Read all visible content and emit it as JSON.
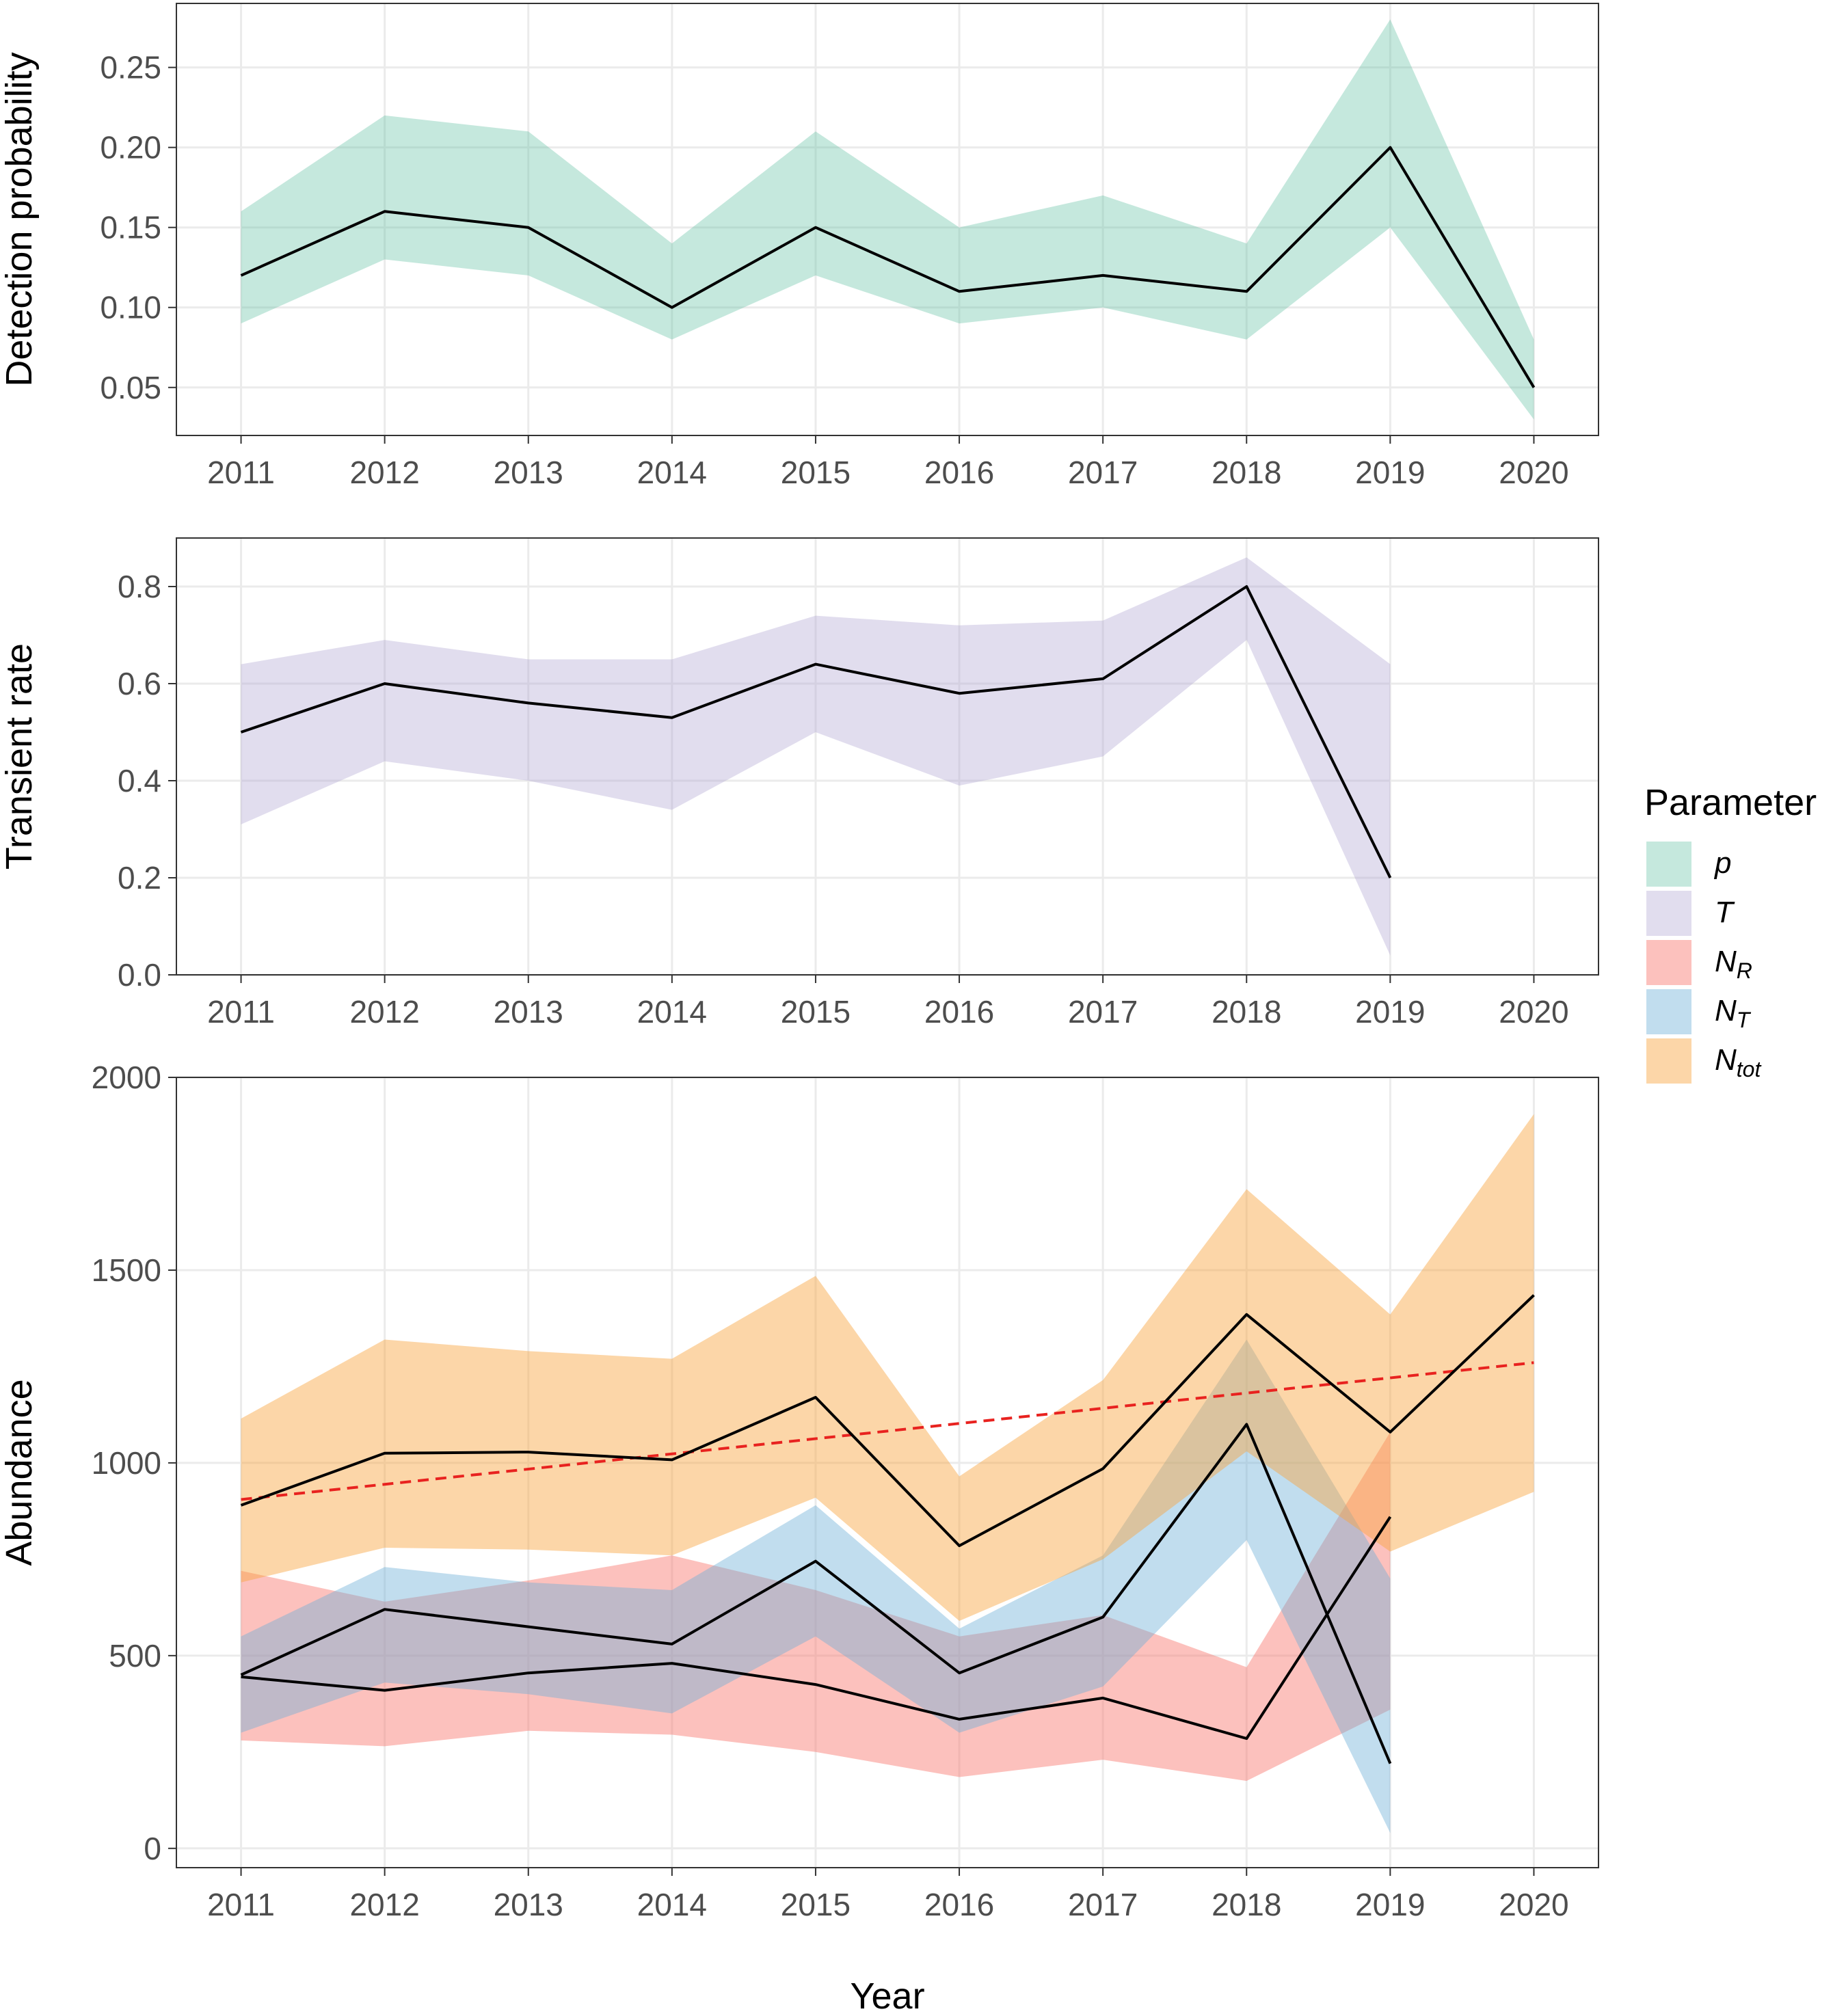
{
  "x_axis_title": "Year",
  "legend": {
    "title": "Parameter",
    "items": [
      {
        "key": "p",
        "main": "p",
        "sub": "",
        "color": "#66C2A5"
      },
      {
        "key": "T",
        "main": "T",
        "sub": "",
        "color": "#A69CCC"
      },
      {
        "key": "NR",
        "main": "N",
        "sub": "R",
        "color": "#F8766D"
      },
      {
        "key": "NT",
        "main": "N",
        "sub": "T",
        "color": "#6BAED6"
      },
      {
        "key": "Ntot",
        "main": "N",
        "sub": "tot",
        "color": "#F9A43E"
      }
    ]
  },
  "chart_data": [
    {
      "type": "area",
      "panel": "top",
      "title": "",
      "xlabel": "Year",
      "ylabel": "Detection probability",
      "xlim": [
        2010.55,
        2020.45
      ],
      "ylim": [
        0.02,
        0.29
      ],
      "xticks": [
        2011,
        2012,
        2013,
        2014,
        2015,
        2016,
        2017,
        2018,
        2019,
        2020
      ],
      "yticks": [
        0.05,
        0.1,
        0.15,
        0.2,
        0.25
      ],
      "ytick_labels": [
        "0.05",
        "0.10",
        "0.15",
        "0.20",
        "0.25"
      ],
      "grid": true,
      "series": [
        {
          "name": "p",
          "color": "#66C2A5",
          "x": [
            2011,
            2012,
            2013,
            2014,
            2015,
            2016,
            2017,
            2018,
            2019,
            2020
          ],
          "mean": [
            0.12,
            0.16,
            0.15,
            0.1,
            0.15,
            0.11,
            0.12,
            0.11,
            0.2,
            0.05
          ],
          "lower": [
            0.09,
            0.13,
            0.12,
            0.08,
            0.12,
            0.09,
            0.1,
            0.08,
            0.15,
            0.03
          ],
          "upper": [
            0.16,
            0.22,
            0.21,
            0.14,
            0.21,
            0.15,
            0.17,
            0.14,
            0.28,
            0.08
          ]
        }
      ]
    },
    {
      "type": "area",
      "panel": "middle",
      "title": "",
      "xlabel": "Year",
      "ylabel": "Transient rate",
      "xlim": [
        2010.55,
        2020.45
      ],
      "ylim": [
        0.0,
        0.9
      ],
      "xticks": [
        2011,
        2012,
        2013,
        2014,
        2015,
        2016,
        2017,
        2018,
        2019,
        2020
      ],
      "yticks": [
        0.0,
        0.2,
        0.4,
        0.6,
        0.8
      ],
      "ytick_labels": [
        "0.0",
        "0.2",
        "0.4",
        "0.6",
        "0.8"
      ],
      "grid": true,
      "series": [
        {
          "name": "T",
          "color": "#A69CCC",
          "x": [
            2011,
            2012,
            2013,
            2014,
            2015,
            2016,
            2017,
            2018,
            2019
          ],
          "mean": [
            0.5,
            0.6,
            0.56,
            0.53,
            0.64,
            0.58,
            0.61,
            0.8,
            0.2
          ],
          "lower": [
            0.31,
            0.44,
            0.4,
            0.34,
            0.5,
            0.39,
            0.45,
            0.69,
            0.04
          ],
          "upper": [
            0.64,
            0.69,
            0.65,
            0.65,
            0.74,
            0.72,
            0.73,
            0.86,
            0.64
          ]
        }
      ]
    },
    {
      "type": "area",
      "panel": "bottom",
      "title": "",
      "xlabel": "Year",
      "ylabel": "Abundance",
      "xlim": [
        2010.55,
        2020.45
      ],
      "ylim": [
        -50,
        2000
      ],
      "xticks": [
        2011,
        2012,
        2013,
        2014,
        2015,
        2016,
        2017,
        2018,
        2019,
        2020
      ],
      "yticks": [
        0,
        500,
        1000,
        1500,
        2000
      ],
      "ytick_labels": [
        "0",
        "500",
        "1000",
        "1500",
        "2000"
      ],
      "grid": true,
      "series": [
        {
          "name": "NR",
          "color": "#F8766D",
          "x": [
            2011,
            2012,
            2013,
            2014,
            2015,
            2016,
            2017,
            2018,
            2019
          ],
          "mean": [
            445,
            410,
            455,
            480,
            425,
            335,
            390,
            285,
            860
          ],
          "lower": [
            280,
            265,
            305,
            295,
            250,
            185,
            230,
            175,
            360
          ],
          "upper": [
            720,
            640,
            695,
            760,
            670,
            550,
            605,
            470,
            1080
          ]
        },
        {
          "name": "NT",
          "color": "#6BAED6",
          "x": [
            2011,
            2012,
            2013,
            2014,
            2015,
            2016,
            2017,
            2018,
            2019
          ],
          "mean": [
            450,
            620,
            575,
            530,
            745,
            455,
            600,
            1100,
            220
          ],
          "lower": [
            300,
            430,
            400,
            350,
            550,
            300,
            420,
            800,
            40
          ],
          "upper": [
            550,
            730,
            690,
            670,
            890,
            570,
            760,
            1320,
            700
          ]
        },
        {
          "name": "Ntot",
          "color": "#F9A43E",
          "x": [
            2011,
            2012,
            2013,
            2014,
            2015,
            2016,
            2017,
            2018,
            2019,
            2020
          ],
          "mean": [
            890,
            1025,
            1028,
            1008,
            1170,
            785,
            985,
            1385,
            1080,
            1435
          ],
          "lower": [
            690,
            780,
            775,
            760,
            910,
            590,
            750,
            1030,
            770,
            925
          ],
          "upper": [
            1115,
            1320,
            1290,
            1270,
            1485,
            965,
            1215,
            1710,
            1385,
            1905
          ]
        }
      ],
      "trend": {
        "name": "trend",
        "color": "#E8221F",
        "x": [
          2011,
          2020
        ],
        "y": [
          905,
          1260
        ]
      }
    }
  ]
}
